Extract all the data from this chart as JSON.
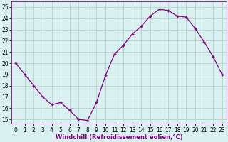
{
  "x": [
    0,
    1,
    2,
    3,
    4,
    5,
    6,
    7,
    8,
    9,
    10,
    11,
    12,
    13,
    14,
    15,
    16,
    17,
    18,
    19,
    20,
    21,
    22,
    23
  ],
  "y": [
    20,
    19,
    18,
    17,
    16.3,
    16.5,
    15.8,
    15.0,
    14.9,
    16.5,
    18.9,
    20.8,
    21.6,
    22.6,
    23.3,
    24.2,
    24.8,
    24.7,
    24.2,
    24.1,
    23.1,
    21.9,
    20.6,
    19.0
  ],
  "line_color": "#800080",
  "marker": "+",
  "marker_size": 3,
  "linewidth": 0.9,
  "bg_color": "#d8f0f0",
  "grid_color": "#b8d0d0",
  "xlabel": "Windchill (Refroidissement éolien,°C)",
  "xlabel_fontsize": 6,
  "yticks": [
    15,
    16,
    17,
    18,
    19,
    20,
    21,
    22,
    23,
    24,
    25
  ],
  "xticks": [
    0,
    1,
    2,
    3,
    4,
    5,
    6,
    7,
    8,
    9,
    10,
    11,
    12,
    13,
    14,
    15,
    16,
    17,
    18,
    19,
    20,
    21,
    22,
    23
  ],
  "ylim": [
    14.6,
    25.5
  ],
  "xlim": [
    -0.5,
    23.5
  ],
  "tick_fontsize": 5.5,
  "spine_color": "#800080",
  "marker_edge_width": 1.0
}
